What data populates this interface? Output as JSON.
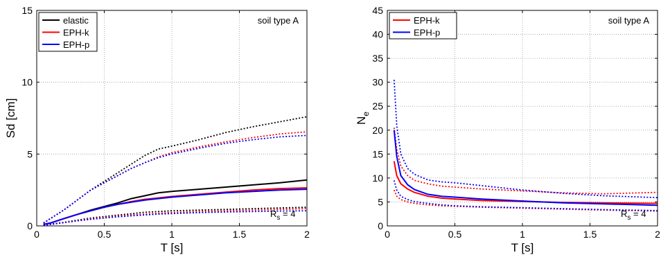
{
  "chart_data": [
    {
      "type": "line",
      "xlabel": "T [s]",
      "ylabel": "Sd [cm]",
      "xlim": [
        0,
        2
      ],
      "ylim": [
        0,
        15
      ],
      "xticks": [
        "0",
        "0.5",
        "1",
        "1.5",
        "2"
      ],
      "yticks": [
        "0",
        "5",
        "10",
        "15"
      ],
      "grid": "dotted",
      "legend_position": "top-left",
      "annotations": {
        "soil": "soil type A",
        "rs": "R",
        "rs_sub": "s",
        "rs_val": " = 4"
      },
      "colors": {
        "elastic": "#000000",
        "EPH-k": "#ff0000",
        "EPH-p": "#0000ff"
      },
      "series": [
        {
          "name": "elastic",
          "color": "#000000",
          "style": "solid",
          "x": [
            0.05,
            0.1,
            0.2,
            0.3,
            0.4,
            0.5,
            0.6,
            0.7,
            0.8,
            0.9,
            1.0,
            1.2,
            1.4,
            1.6,
            1.8,
            2.0
          ],
          "y": [
            0.1,
            0.2,
            0.5,
            0.8,
            1.1,
            1.35,
            1.6,
            1.9,
            2.1,
            2.3,
            2.4,
            2.55,
            2.7,
            2.85,
            3.0,
            3.2
          ]
        },
        {
          "name": "elastic",
          "color": "#000000",
          "style": "dotted",
          "x": [
            0.05,
            0.1,
            0.2,
            0.3,
            0.4,
            0.5,
            0.6,
            0.7,
            0.8,
            0.9,
            1.0,
            1.2,
            1.4,
            1.6,
            1.8,
            2.0
          ],
          "y": [
            0.2,
            0.5,
            1.1,
            1.8,
            2.5,
            3.1,
            3.7,
            4.3,
            4.9,
            5.35,
            5.55,
            6.0,
            6.5,
            6.9,
            7.25,
            7.6
          ]
        },
        {
          "name": "elastic",
          "color": "#000000",
          "style": "dotted",
          "x": [
            0.05,
            0.1,
            0.2,
            0.3,
            0.4,
            0.5,
            0.6,
            0.7,
            0.8,
            0.9,
            1.0,
            1.2,
            1.4,
            1.6,
            1.8,
            2.0
          ],
          "y": [
            0.05,
            0.12,
            0.25,
            0.4,
            0.55,
            0.65,
            0.75,
            0.85,
            0.95,
            1.0,
            1.05,
            1.1,
            1.15,
            1.2,
            1.25,
            1.3
          ]
        },
        {
          "name": "EPH-k",
          "color": "#ff0000",
          "style": "solid",
          "x": [
            0.05,
            0.1,
            0.2,
            0.3,
            0.4,
            0.5,
            0.6,
            0.7,
            0.8,
            0.9,
            1.0,
            1.2,
            1.4,
            1.6,
            1.8,
            2.0
          ],
          "y": [
            0.1,
            0.2,
            0.5,
            0.8,
            1.05,
            1.3,
            1.5,
            1.7,
            1.85,
            1.95,
            2.05,
            2.2,
            2.35,
            2.5,
            2.6,
            2.65
          ]
        },
        {
          "name": "EPH-k",
          "color": "#ff0000",
          "style": "dotted",
          "x": [
            0.05,
            0.1,
            0.2,
            0.3,
            0.4,
            0.5,
            0.6,
            0.7,
            0.8,
            0.9,
            1.0,
            1.2,
            1.4,
            1.6,
            1.8,
            2.0
          ],
          "y": [
            0.2,
            0.5,
            1.1,
            1.8,
            2.5,
            3.0,
            3.5,
            4.0,
            4.4,
            4.8,
            5.1,
            5.5,
            5.85,
            6.15,
            6.4,
            6.55
          ]
        },
        {
          "name": "EPH-k",
          "color": "#ff0000",
          "style": "dotted",
          "x": [
            0.05,
            0.1,
            0.2,
            0.3,
            0.4,
            0.5,
            0.6,
            0.7,
            0.8,
            0.9,
            1.0,
            1.2,
            1.4,
            1.6,
            1.8,
            2.0
          ],
          "y": [
            0.05,
            0.1,
            0.25,
            0.38,
            0.5,
            0.6,
            0.68,
            0.76,
            0.82,
            0.88,
            0.93,
            1.0,
            1.05,
            1.1,
            1.15,
            1.2
          ]
        },
        {
          "name": "EPH-p",
          "color": "#0000ff",
          "style": "solid",
          "x": [
            0.05,
            0.1,
            0.2,
            0.3,
            0.4,
            0.5,
            0.6,
            0.7,
            0.8,
            0.9,
            1.0,
            1.2,
            1.4,
            1.6,
            1.8,
            2.0
          ],
          "y": [
            0.1,
            0.2,
            0.5,
            0.8,
            1.05,
            1.3,
            1.5,
            1.65,
            1.8,
            1.9,
            2.0,
            2.15,
            2.3,
            2.4,
            2.5,
            2.55
          ]
        },
        {
          "name": "EPH-p",
          "color": "#0000ff",
          "style": "dotted",
          "x": [
            0.05,
            0.1,
            0.2,
            0.3,
            0.4,
            0.5,
            0.6,
            0.7,
            0.8,
            0.9,
            1.0,
            1.2,
            1.4,
            1.6,
            1.8,
            2.0
          ],
          "y": [
            0.2,
            0.5,
            1.1,
            1.8,
            2.5,
            3.0,
            3.5,
            4.0,
            4.4,
            4.75,
            5.0,
            5.4,
            5.75,
            6.0,
            6.2,
            6.3
          ]
        },
        {
          "name": "EPH-p",
          "color": "#0000ff",
          "style": "dotted",
          "x": [
            0.05,
            0.1,
            0.2,
            0.3,
            0.4,
            0.5,
            0.6,
            0.7,
            0.8,
            0.9,
            1.0,
            1.2,
            1.4,
            1.6,
            1.8,
            2.0
          ],
          "y": [
            0.05,
            0.1,
            0.22,
            0.35,
            0.46,
            0.55,
            0.63,
            0.7,
            0.76,
            0.82,
            0.86,
            0.92,
            0.97,
            1.0,
            1.03,
            1.05
          ]
        }
      ]
    },
    {
      "type": "line",
      "xlabel": "T [s]",
      "ylabel": "N",
      "ylabel_sub": "e",
      "xlim": [
        0,
        2
      ],
      "ylim": [
        0,
        45
      ],
      "xticks": [
        "0",
        "0.5",
        "1",
        "1.5",
        "2"
      ],
      "yticks": [
        "0",
        "5",
        "10",
        "15",
        "20",
        "25",
        "30",
        "35",
        "40",
        "45"
      ],
      "grid": "dotted",
      "legend_position": "top-left",
      "annotations": {
        "soil": "soil type A",
        "rs": "R",
        "rs_sub": "s",
        "rs_val": " = 4"
      },
      "colors": {
        "EPH-k": "#ff0000",
        "EPH-p": "#0000ff"
      },
      "series": [
        {
          "name": "EPH-k",
          "color": "#ff0000",
          "style": "solid",
          "x": [
            0.05,
            0.07,
            0.1,
            0.15,
            0.2,
            0.3,
            0.4,
            0.5,
            0.7,
            1.0,
            1.3,
            1.6,
            2.0
          ],
          "y": [
            13.5,
            10.5,
            8.8,
            7.7,
            7.0,
            6.2,
            5.8,
            5.6,
            5.3,
            5.1,
            4.9,
            4.8,
            4.7
          ]
        },
        {
          "name": "EPH-k",
          "color": "#ff0000",
          "style": "dotted",
          "x": [
            0.05,
            0.07,
            0.1,
            0.15,
            0.2,
            0.3,
            0.4,
            0.5,
            0.7,
            1.0,
            1.3,
            1.6,
            2.0
          ],
          "y": [
            20.5,
            16.0,
            12.5,
            10.5,
            9.5,
            8.8,
            8.3,
            8.1,
            7.7,
            7.3,
            6.9,
            6.7,
            7.0
          ]
        },
        {
          "name": "EPH-k",
          "color": "#ff0000",
          "style": "dotted",
          "x": [
            0.05,
            0.07,
            0.1,
            0.15,
            0.2,
            0.3,
            0.4,
            0.5,
            0.7,
            1.0,
            1.3,
            1.6,
            2.0
          ],
          "y": [
            7.5,
            6.2,
            5.5,
            5.0,
            4.7,
            4.4,
            4.2,
            4.1,
            3.9,
            3.7,
            3.5,
            3.3,
            3.1
          ]
        },
        {
          "name": "EPH-p",
          "color": "#0000ff",
          "style": "solid",
          "x": [
            0.05,
            0.07,
            0.1,
            0.15,
            0.2,
            0.3,
            0.4,
            0.5,
            0.7,
            1.0,
            1.3,
            1.6,
            2.0
          ],
          "y": [
            20.0,
            14.5,
            10.5,
            8.6,
            7.6,
            6.6,
            6.2,
            6.0,
            5.6,
            5.2,
            4.8,
            4.6,
            4.3
          ]
        },
        {
          "name": "EPH-p",
          "color": "#0000ff",
          "style": "dotted",
          "x": [
            0.05,
            0.07,
            0.1,
            0.15,
            0.2,
            0.3,
            0.4,
            0.5,
            0.7,
            1.0,
            1.3,
            1.6,
            2.0
          ],
          "y": [
            30.5,
            21.0,
            15.0,
            12.0,
            10.8,
            9.6,
            9.2,
            9.0,
            8.4,
            7.5,
            6.8,
            6.3,
            5.9
          ]
        },
        {
          "name": "EPH-p",
          "color": "#0000ff",
          "style": "dotted",
          "x": [
            0.05,
            0.07,
            0.1,
            0.15,
            0.2,
            0.3,
            0.4,
            0.5,
            0.7,
            1.0,
            1.3,
            1.6,
            2.0
          ],
          "y": [
            9.5,
            7.5,
            6.2,
            5.5,
            5.1,
            4.7,
            4.4,
            4.2,
            4.0,
            3.8,
            3.6,
            3.4,
            3.2
          ]
        }
      ]
    }
  ]
}
